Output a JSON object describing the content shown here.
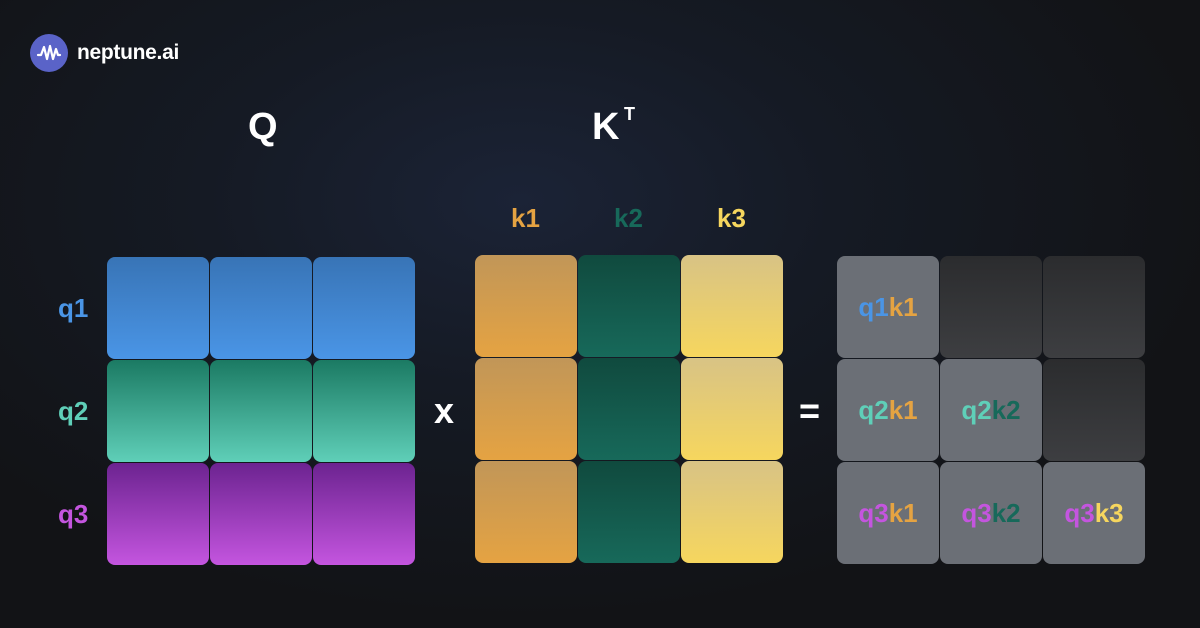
{
  "brand": {
    "name": "neptune.ai",
    "icon": "wave-signal-icon",
    "color": "#5a63c8"
  },
  "titles": {
    "q": "Q",
    "k": "K",
    "k_sup": "T"
  },
  "operators": {
    "multiply": "x",
    "equals": "="
  },
  "q_rows": [
    {
      "label": "q1",
      "color": "#4a95e6"
    },
    {
      "label": "q2",
      "color": "#5fcfb8"
    },
    {
      "label": "q3",
      "color": "#c455df"
    }
  ],
  "k_cols": [
    {
      "label": "k1",
      "color": "#e5a342"
    },
    {
      "label": "k2",
      "color": "#17695a"
    },
    {
      "label": "k3",
      "color": "#f6d65e"
    }
  ],
  "result": [
    [
      {
        "q": "q1",
        "k": "k1"
      },
      null,
      null
    ],
    [
      {
        "q": "q2",
        "k": "k1"
      },
      {
        "q": "q2",
        "k": "k2"
      },
      null
    ],
    [
      {
        "q": "q3",
        "k": "k1"
      },
      {
        "q": "q3",
        "k": "k2"
      },
      {
        "q": "q3",
        "k": "k3"
      }
    ]
  ]
}
